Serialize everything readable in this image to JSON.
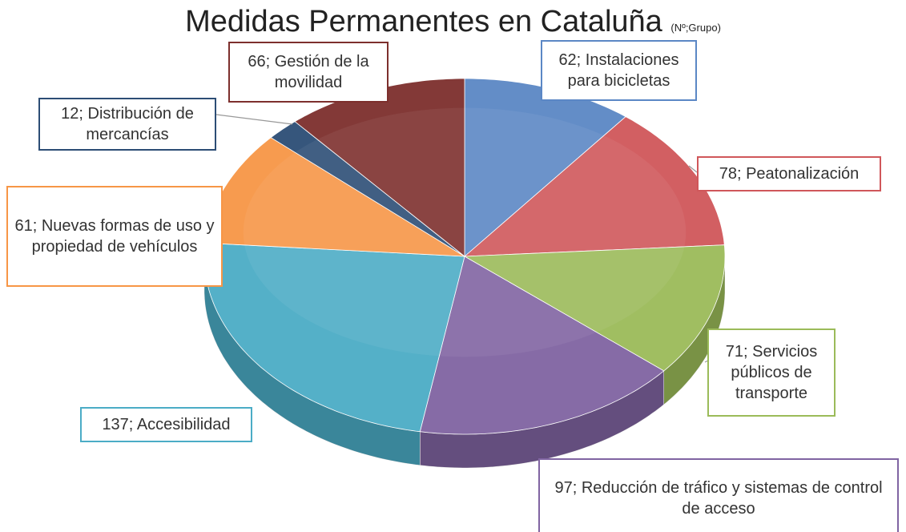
{
  "chart_data": {
    "type": "pie",
    "title": "Medidas Permanentes en Cataluña",
    "subtitle": "(Nº;Grupo)",
    "values": [
      62,
      78,
      71,
      97,
      137,
      61,
      12,
      66
    ],
    "value_labels": [
      "62; Instalaciones para bicicletas",
      "78; Peatonalización",
      "71; Servicios públicos de transporte",
      "97; Reducción de tráfico y sistemas de control de acceso",
      "137; Accesibilidad",
      "61; Nuevas formas de uso y propiedad de vehículos",
      "12; Distribución de mercancías",
      "66; Gestión de la movilidad"
    ],
    "colors": [
      "#5b87c5",
      "#d0575a",
      "#9bbb59",
      "#8064a2",
      "#4bacc6",
      "#f79646",
      "#2c4d75",
      "#7d2f2d"
    ]
  }
}
